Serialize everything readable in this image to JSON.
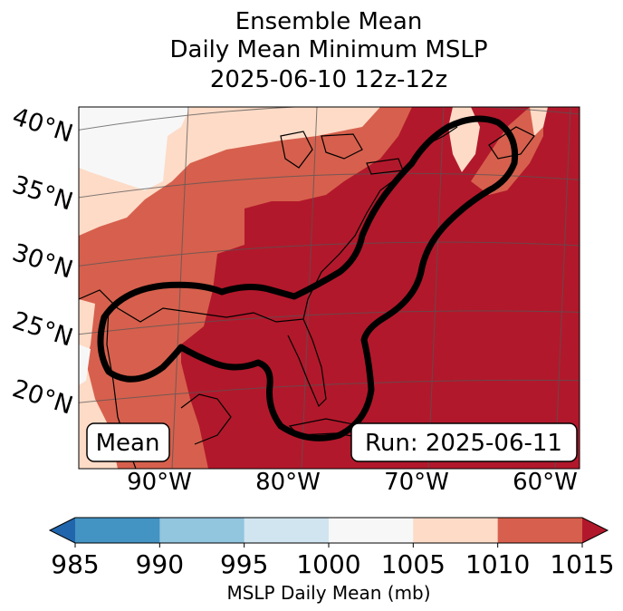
{
  "chart_data": {
    "type": "heatmap",
    "title_lines": [
      "Ensemble Mean",
      "Daily Mean Minimum MSLP",
      "2025-06-10 12z-12z"
    ],
    "lat_labels": [
      "40°N",
      "35°N",
      "30°N",
      "25°N",
      "20°N"
    ],
    "lon_labels": [
      "90°W",
      "80°W",
      "70°W",
      "60°W"
    ],
    "mean_label": "Mean",
    "run_label": "Run: 2025-06-11",
    "colorbar": {
      "label": "MSLP Daily Mean (mb)",
      "ticks": [
        "985",
        "990",
        "995",
        "1000",
        "1005",
        "1010",
        "1015"
      ],
      "colors": [
        "#2166ac",
        "#4393c3",
        "#92c5de",
        "#d1e5f0",
        "#f7f7f7",
        "#fddbc7",
        "#d6604d",
        "#b2182b"
      ],
      "extend": "both"
    },
    "field_levels_mb": [
      {
        "range": "1000-1005",
        "color": "#f7f7f7"
      },
      {
        "range": "1005-1010",
        "color": "#fddbc7"
      },
      {
        "range": "1010-1015",
        "color": "#d6604d"
      },
      {
        "range": ">1015",
        "color": "#b2182b"
      }
    ]
  }
}
